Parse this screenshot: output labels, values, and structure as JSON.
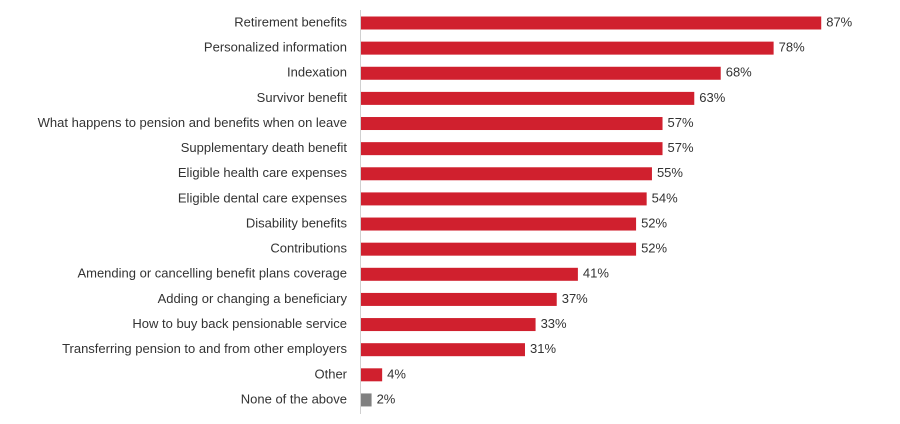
{
  "chart_data": {
    "type": "hbar",
    "categories": [
      "Retirement benefits",
      "Personalized information",
      "Indexation",
      "Survivor benefit",
      "What happens to pension and benefits when on leave",
      "Supplementary death benefit",
      "Eligible health care expenses",
      "Eligible dental care expenses",
      "Disability benefits",
      "Contributions",
      "Amending or cancelling benefit plans coverage",
      "Adding or changing a beneficiary",
      "How to buy back pensionable service",
      "Transferring pension to and from other employers",
      "Other",
      "None of the above"
    ],
    "values": [
      87,
      78,
      68,
      63,
      57,
      57,
      55,
      54,
      52,
      52,
      41,
      37,
      33,
      31,
      4,
      2
    ],
    "value_labels": [
      "87%",
      "78%",
      "68%",
      "63%",
      "57%",
      "57%",
      "55%",
      "54%",
      "52%",
      "52%",
      "41%",
      "37%",
      "33%",
      "31%",
      "4%",
      "2%"
    ],
    "colors": [
      "#d0202e",
      "#d0202e",
      "#d0202e",
      "#d0202e",
      "#d0202e",
      "#d0202e",
      "#d0202e",
      "#d0202e",
      "#d0202e",
      "#d0202e",
      "#d0202e",
      "#d0202e",
      "#d0202e",
      "#d0202e",
      "#d0202e",
      "#808080"
    ]
  }
}
